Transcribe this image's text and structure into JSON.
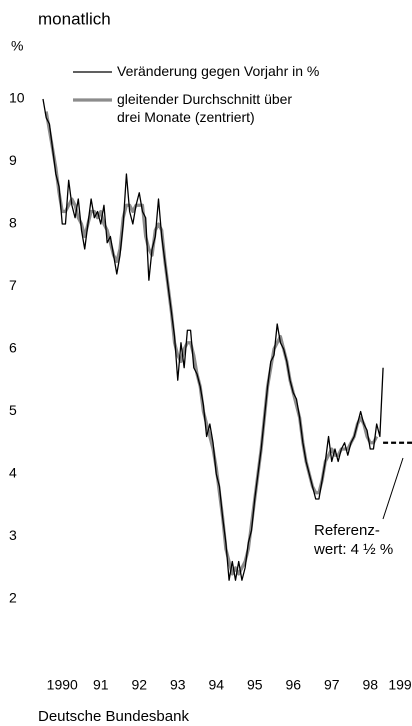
{
  "chart_data": {
    "type": "line",
    "title": "monatlich",
    "y_unit": "%",
    "source": "Deutsche Bundesbank",
    "categories": [
      null,
      null,
      null,
      null,
      null,
      null,
      "1990",
      null,
      null,
      null,
      null,
      null,
      null,
      null,
      null,
      null,
      null,
      null,
      "91",
      null,
      null,
      null,
      null,
      null,
      null,
      null,
      null,
      null,
      null,
      null,
      "92",
      null,
      null,
      null,
      null,
      null,
      null,
      null,
      null,
      null,
      null,
      null,
      "93",
      null,
      null,
      null,
      null,
      null,
      null,
      null,
      null,
      null,
      null,
      null,
      "94",
      null,
      null,
      null,
      null,
      null,
      null,
      null,
      null,
      null,
      null,
      null,
      "95",
      null,
      null,
      null,
      null,
      null,
      null,
      null,
      null,
      null,
      null,
      null,
      "96",
      null,
      null,
      null,
      null,
      null,
      null,
      null,
      null,
      null,
      null,
      null,
      "97",
      null,
      null,
      null,
      null,
      null,
      null,
      null,
      null,
      null,
      null,
      null,
      "98",
      null,
      null,
      null,
      null,
      null,
      null,
      null,
      null,
      null,
      null,
      null,
      "199",
      null
    ],
    "series": [
      {
        "name": "gleitender Durchschnitt über drei Monate (zentriert)",
        "color": "#8c8c8c",
        "values": [
          null,
          9.8,
          9.5,
          9.2,
          8.9,
          8.5,
          8.2,
          8.2,
          8.3,
          8.4,
          8.3,
          8.1,
          8.0,
          7.8,
          8.0,
          8.2,
          8.2,
          8.1,
          8.2,
          8.0,
          7.9,
          7.7,
          7.5,
          7.4,
          7.6,
          8.1,
          8.3,
          8.3,
          8.2,
          8.3,
          8.3,
          8.3,
          7.8,
          7.6,
          7.5,
          7.9,
          8.0,
          7.9,
          7.4,
          7.0,
          6.6,
          6.1,
          5.9,
          5.8,
          6.0,
          6.1,
          6.1,
          5.9,
          5.6,
          5.4,
          5.0,
          4.8,
          4.6,
          4.4,
          4.1,
          3.7,
          3.3,
          2.8,
          2.6,
          2.4,
          2.5,
          2.4,
          2.5,
          2.6,
          2.8,
          3.2,
          3.6,
          4.0,
          4.4,
          4.9,
          5.4,
          5.7,
          6.0,
          6.1,
          6.2,
          6.0,
          5.8,
          5.5,
          5.3,
          5.1,
          4.9,
          4.5,
          4.2,
          4.0,
          3.8,
          3.7,
          3.7,
          3.9,
          4.2,
          4.3,
          4.4,
          4.3,
          4.3,
          4.4,
          4.4,
          4.4,
          4.5,
          4.6,
          4.8,
          4.9,
          4.8,
          4.6,
          4.5,
          4.5,
          4.6,
          null,
          null,
          null,
          null,
          null,
          null,
          null,
          null,
          null,
          null,
          null
        ]
      },
      {
        "name": "Veränderung gegen Vorjahr in %",
        "color": "#000000",
        "values": [
          10.0,
          9.7,
          9.6,
          9.2,
          8.8,
          8.6,
          8.0,
          8.0,
          8.7,
          8.3,
          8.1,
          8.4,
          7.9,
          7.6,
          8.0,
          8.4,
          8.1,
          8.2,
          8.0,
          8.3,
          7.7,
          7.8,
          7.5,
          7.2,
          7.5,
          8.0,
          8.8,
          8.2,
          8.0,
          8.3,
          8.5,
          8.2,
          8.1,
          7.1,
          7.6,
          7.8,
          8.4,
          7.8,
          7.4,
          7.0,
          6.6,
          6.2,
          5.5,
          6.1,
          5.7,
          6.3,
          6.3,
          5.7,
          5.6,
          5.4,
          5.1,
          4.6,
          4.8,
          4.5,
          4.0,
          3.8,
          3.3,
          2.9,
          2.3,
          2.6,
          2.3,
          2.6,
          2.3,
          2.5,
          2.9,
          3.1,
          3.6,
          4.0,
          4.4,
          4.9,
          5.4,
          5.8,
          5.9,
          6.4,
          6.1,
          6.0,
          5.8,
          5.5,
          5.3,
          5.2,
          4.9,
          4.5,
          4.2,
          4.0,
          3.8,
          3.6,
          3.6,
          3.9,
          4.2,
          4.6,
          4.2,
          4.4,
          4.2,
          4.4,
          4.5,
          4.3,
          4.5,
          4.6,
          4.8,
          5.0,
          4.8,
          4.7,
          4.4,
          4.4,
          4.8,
          4.6,
          5.7,
          null,
          null,
          null,
          null,
          null,
          null,
          null,
          null,
          null
        ]
      }
    ],
    "reference": {
      "value": 4.5,
      "lines": [
        "Referenz-",
        "wert: 4 ½ %"
      ]
    },
    "ylim": [
      2,
      10
    ],
    "yticks": [
      2,
      3,
      4,
      5,
      6,
      7,
      8,
      9,
      10
    ],
    "grid": false
  }
}
